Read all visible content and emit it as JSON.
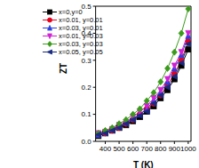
{
  "chart_data": {
    "type": "line",
    "x_label": "T (K)",
    "y_label": "ZT",
    "x": [
      350,
      400,
      450,
      500,
      550,
      600,
      650,
      700,
      750,
      800,
      850,
      900,
      950,
      1000
    ],
    "series": [
      {
        "name": "x=0,y=0",
        "color": "#000000",
        "marker": "square",
        "values": [
          0.02,
          0.03,
          0.04,
          0.05,
          0.06,
          0.075,
          0.09,
          0.11,
          0.13,
          0.16,
          0.19,
          0.23,
          0.28,
          0.34
        ]
      },
      {
        "name": "x=0.01, y=0.01",
        "color": "#e8001c",
        "marker": "circle",
        "values": [
          0.025,
          0.03,
          0.04,
          0.05,
          0.065,
          0.08,
          0.1,
          0.12,
          0.14,
          0.17,
          0.21,
          0.25,
          0.3,
          0.37
        ]
      },
      {
        "name": "x=0.03, y=0.01",
        "color": "#2a3fe0",
        "marker": "triangle-up",
        "values": [
          0.025,
          0.035,
          0.045,
          0.055,
          0.07,
          0.085,
          0.1,
          0.12,
          0.15,
          0.18,
          0.22,
          0.27,
          0.32,
          0.39
        ]
      },
      {
        "name": "x=0.01, y=0.03",
        "color": "#d21fd2",
        "marker": "triangle-down",
        "values": [
          0.03,
          0.035,
          0.045,
          0.06,
          0.07,
          0.09,
          0.11,
          0.13,
          0.16,
          0.19,
          0.23,
          0.28,
          0.33,
          0.4
        ]
      },
      {
        "name": "x=0.03, y=0.03",
        "color": "#3a9a1a",
        "marker": "diamond",
        "values": [
          0.03,
          0.04,
          0.05,
          0.065,
          0.08,
          0.1,
          0.12,
          0.15,
          0.18,
          0.22,
          0.27,
          0.33,
          0.4,
          0.49
        ]
      },
      {
        "name": "x=0.05, y=0.05",
        "color": "#1a2a80",
        "marker": "triangle-left",
        "values": [
          0.025,
          0.03,
          0.04,
          0.05,
          0.065,
          0.08,
          0.095,
          0.11,
          0.14,
          0.17,
          0.2,
          0.24,
          0.29,
          0.36
        ]
      }
    ],
    "xlim": [
      330,
      1020
    ],
    "xticks": [
      400,
      500,
      600,
      700,
      800,
      900,
      1000
    ],
    "ylim": [
      0,
      0.5
    ],
    "yticks": [
      {
        "value": 0,
        "label": "0.0"
      },
      0.1,
      0.2,
      0.3,
      0.4,
      0.5
    ],
    "grid": false,
    "legend": "upper left"
  }
}
